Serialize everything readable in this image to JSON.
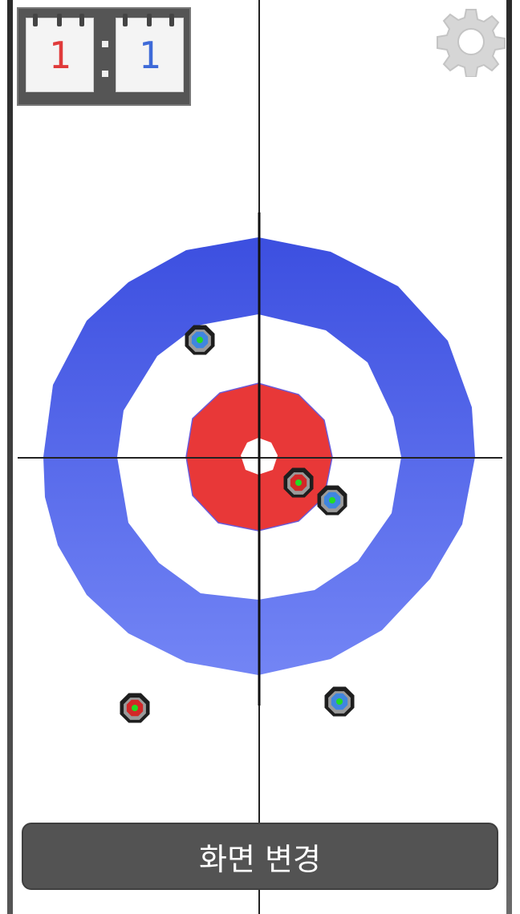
{
  "score": {
    "red": "1",
    "blue": "1"
  },
  "icons": {
    "settings": "gear-icon"
  },
  "button": {
    "change_screen_label": "화면 변경"
  },
  "colors": {
    "outer_ring_top": "#3c4fe0",
    "outer_ring_bottom": "#6f85f8",
    "button_ring": "#e83838",
    "team_red": "#d22828",
    "team_blue": "#3f86df",
    "stone_center": "#22dd22"
  },
  "stones": [
    {
      "team": "blue"
    },
    {
      "team": "red"
    },
    {
      "team": "blue"
    },
    {
      "team": "red"
    },
    {
      "team": "blue"
    }
  ]
}
